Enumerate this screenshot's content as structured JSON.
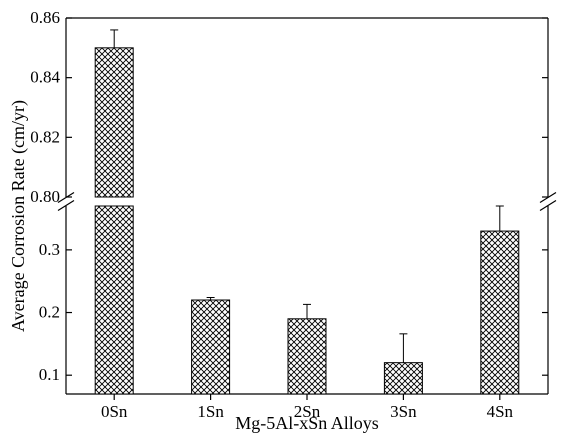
{
  "chart_data": {
    "type": "bar",
    "title": "",
    "xlabel": "Mg-5Al-xSn Alloys",
    "ylabel": "Average Corrosion Rate (cm/yr)",
    "categories": [
      "0Sn",
      "1Sn",
      "2Sn",
      "3Sn",
      "4Sn"
    ],
    "values": [
      0.85,
      0.22,
      0.19,
      0.12,
      0.33
    ],
    "error_upper": [
      0.856,
      0.224,
      0.213,
      0.166,
      0.375
    ],
    "y_axis": "broken",
    "ylim_lower": [
      0.07,
      0.37
    ],
    "ylim_upper": [
      0.8,
      0.86
    ],
    "yticks_lower": [
      "0.1",
      "0.2",
      "0.3"
    ],
    "yticks_upper": [
      "0.80",
      "0.82",
      "0.84",
      "0.86"
    ],
    "bar_pattern": "crosshatch",
    "grid": false,
    "legend": "none"
  }
}
